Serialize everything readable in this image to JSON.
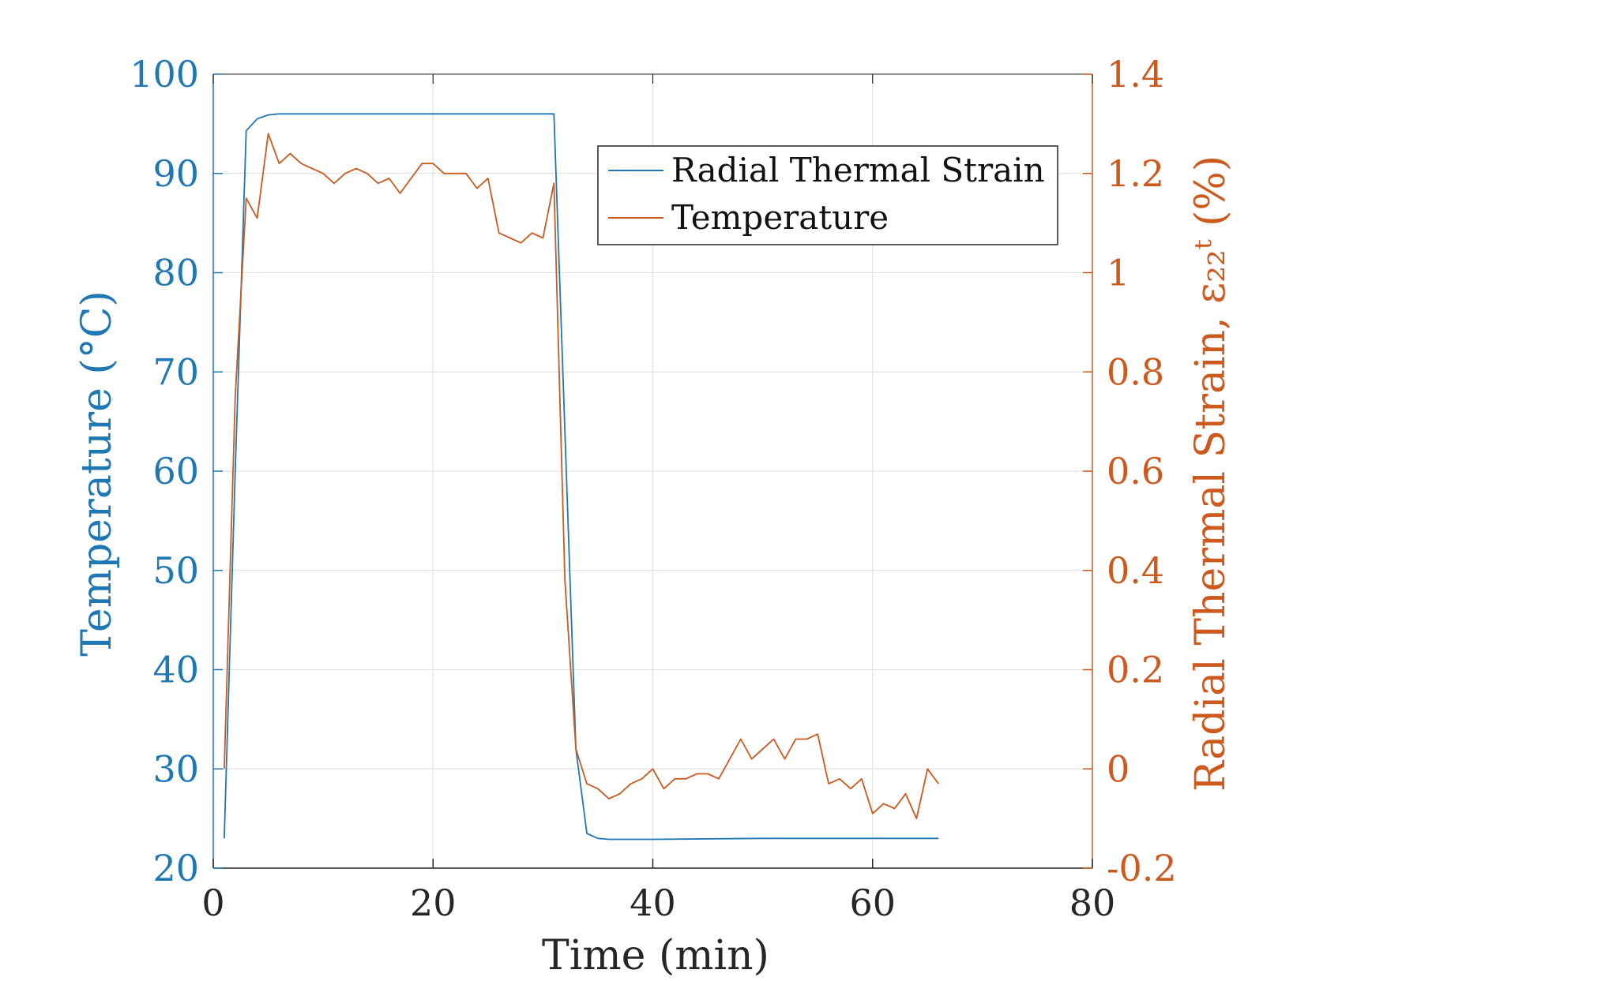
{
  "chart_data": {
    "type": "line",
    "xlabel": "Time (min)",
    "ylabel_left": "Temperature (°C)",
    "ylabel_right": "Radial Thermal Strain, ε₂₂ᵗ (%)",
    "xlim": [
      0,
      80
    ],
    "ylim_left": [
      20,
      100
    ],
    "ylim_right": [
      -0.2,
      1.4
    ],
    "x_ticks": [
      "0",
      "20",
      "40",
      "60",
      "80"
    ],
    "y_left_ticks": [
      "20",
      "30",
      "40",
      "50",
      "60",
      "70",
      "80",
      "90",
      "100"
    ],
    "y_right_ticks": [
      "-0.2",
      "0",
      "0.2",
      "0.4",
      "0.6",
      "0.8",
      "1",
      "1.2",
      "1.4"
    ],
    "grid": true,
    "legend_position": "top-right",
    "colors": {
      "left_axis": "#1f77b4",
      "right_axis": "#cc5a1f"
    },
    "series": [
      {
        "name": "Radial Thermal Strain",
        "axis": "left",
        "color": "#1f77b4",
        "x": [
          1,
          2,
          3,
          4,
          5,
          6,
          7,
          10,
          20,
          30,
          31,
          32,
          33,
          34,
          35,
          36,
          37,
          40,
          50,
          60,
          66
        ],
        "y": [
          23,
          60,
          94.3,
          95.5,
          95.9,
          96.0,
          96.0,
          96.0,
          96.0,
          96.0,
          96.0,
          64,
          32,
          23.5,
          23.0,
          22.9,
          22.9,
          22.9,
          23.0,
          23.0,
          23.0
        ]
      },
      {
        "name": "Temperature",
        "axis": "right",
        "color": "#cc5a1f",
        "x": [
          1,
          2,
          3,
          4,
          5,
          6,
          7,
          8,
          9,
          10,
          11,
          12,
          13,
          14,
          15,
          16,
          17,
          18,
          19,
          20,
          21,
          22,
          23,
          24,
          25,
          26,
          27,
          28,
          29,
          30,
          31,
          32,
          33,
          34,
          35,
          36,
          37,
          38,
          39,
          40,
          41,
          42,
          43,
          44,
          45,
          46,
          47,
          48,
          49,
          50,
          51,
          52,
          53,
          54,
          55,
          56,
          57,
          58,
          59,
          60,
          61,
          62,
          63,
          64,
          65,
          66
        ],
        "y": [
          0.0,
          0.75,
          1.15,
          1.11,
          1.28,
          1.22,
          1.24,
          1.22,
          1.21,
          1.2,
          1.18,
          1.2,
          1.21,
          1.2,
          1.18,
          1.19,
          1.16,
          1.19,
          1.22,
          1.22,
          1.2,
          1.2,
          1.2,
          1.17,
          1.19,
          1.08,
          1.07,
          1.06,
          1.08,
          1.07,
          1.18,
          0.38,
          0.04,
          -0.03,
          -0.04,
          -0.06,
          -0.05,
          -0.03,
          -0.02,
          0.0,
          -0.04,
          -0.02,
          -0.02,
          -0.01,
          -0.01,
          -0.02,
          0.02,
          0.06,
          0.02,
          0.04,
          0.06,
          0.02,
          0.06,
          0.06,
          0.07,
          -0.03,
          -0.02,
          -0.04,
          -0.02,
          -0.09,
          -0.07,
          -0.08,
          -0.05,
          -0.1,
          0.0,
          -0.03
        ]
      }
    ]
  }
}
